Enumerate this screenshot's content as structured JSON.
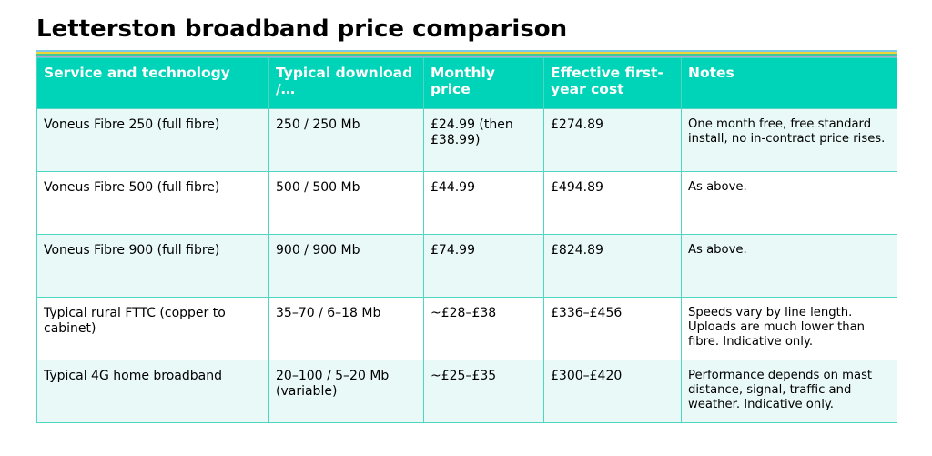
{
  "title": "Letterston broadband price comparison",
  "colors": {
    "header_bg": "#00d4b8",
    "header_text": "#ffffff",
    "border": "#4fd6c2",
    "row_alt": "#e9f9f8",
    "stripe_1": "#7cc8e6",
    "stripe_2": "#f0d33a",
    "stripe_3": "#3ec9a0",
    "stripe_4": "#b79ad8"
  },
  "table": {
    "headers": [
      "Service and technology",
      "Typical download /…",
      "Monthly price",
      "Effective first-year cost",
      "Notes"
    ],
    "rows": [
      {
        "service": "Voneus Fibre 250 (full fibre)",
        "speed": "250 / 250 Mb",
        "monthly": "£24.99 (then £38.99)",
        "first_year": "£274.89",
        "notes": "One month free, free standard install, no in-contract price rises."
      },
      {
        "service": "Voneus Fibre 500 (full fibre)",
        "speed": "500 / 500 Mb",
        "monthly": "£44.99",
        "first_year": "£494.89",
        "notes": "As above."
      },
      {
        "service": "Voneus Fibre 900 (full fibre)",
        "speed": "900 / 900 Mb",
        "monthly": "£74.99",
        "first_year": "£824.89",
        "notes": "As above."
      },
      {
        "service": "Typical rural FTTC (copper to cabinet)",
        "speed": "35–70 / 6–18 Mb",
        "monthly": "~£28–£38",
        "first_year": "£336–£456",
        "notes": "Speeds vary by line length. Uploads are much lower than fibre. Indicative only."
      },
      {
        "service": "Typical 4G home broadband",
        "speed": "20–100 / 5–20 Mb (variable)",
        "monthly": "~£25–£35",
        "first_year": "£300–£420",
        "notes": "Performance depends on mast distance, signal, traffic and weather. Indicative only."
      }
    ]
  }
}
